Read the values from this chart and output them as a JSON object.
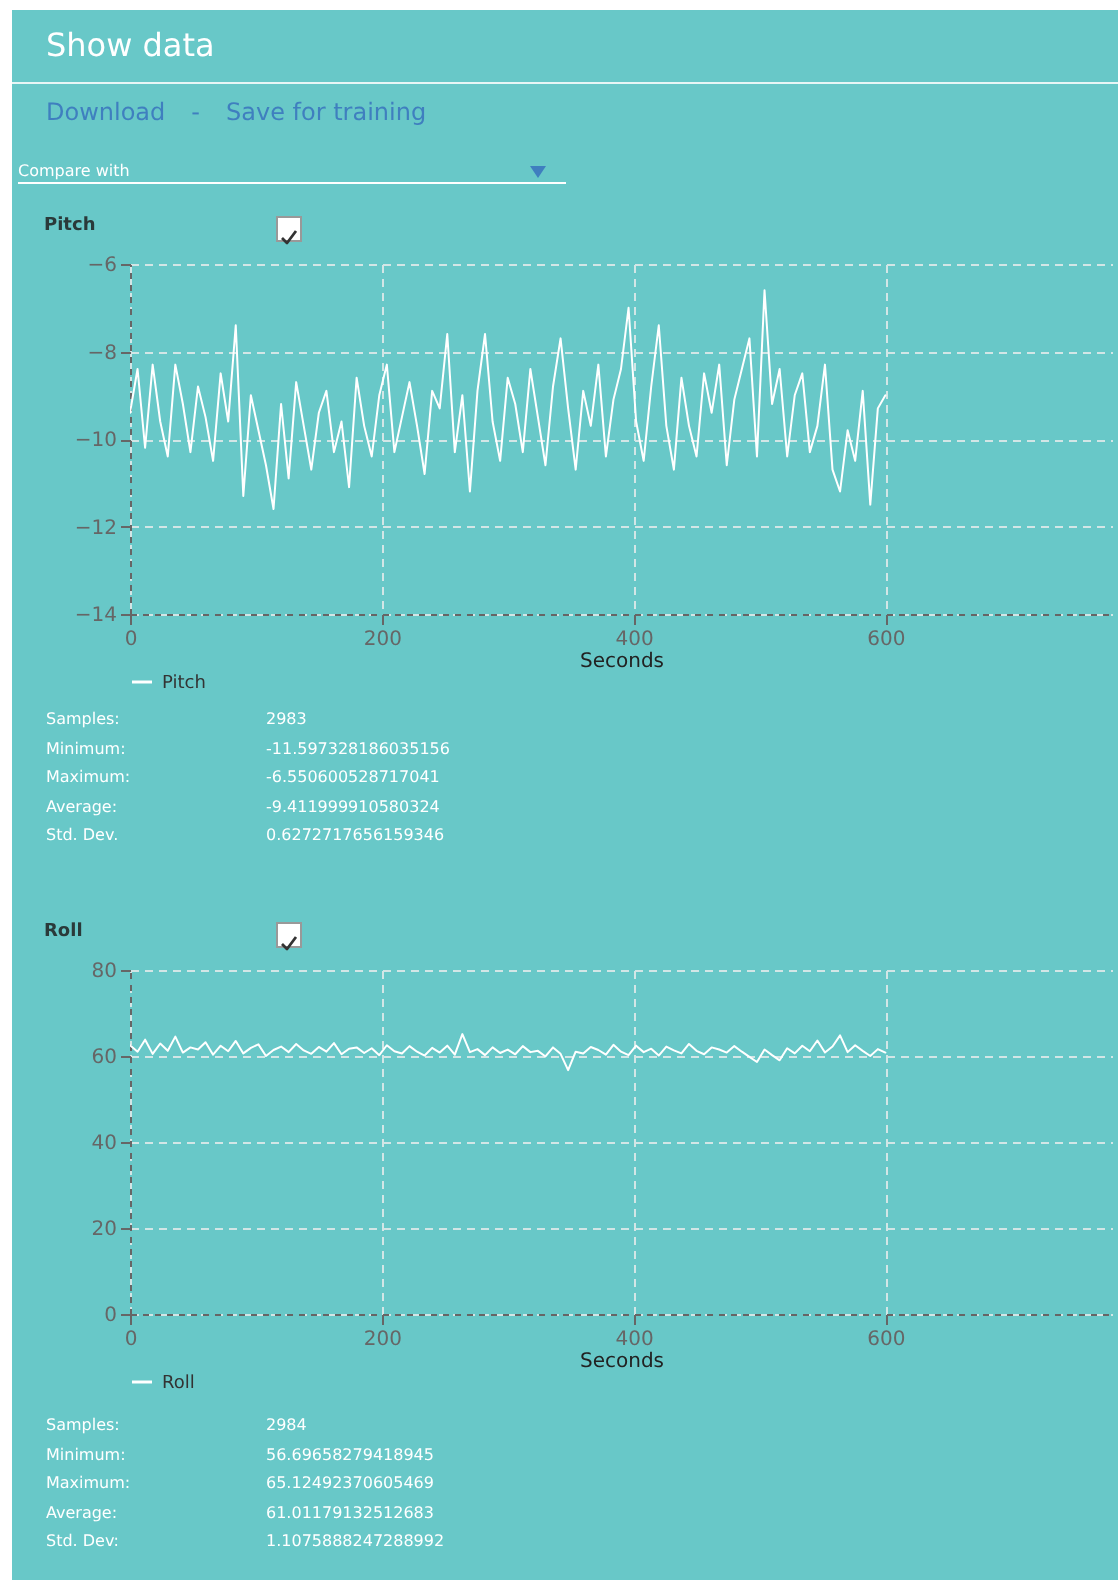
{
  "chart_data": [
    {
      "type": "line",
      "title": "Pitch",
      "xlabel": "Seconds",
      "xlim": [
        0,
        780
      ],
      "xticks": [
        0,
        200,
        400,
        600
      ],
      "ylim": [
        -14,
        -6
      ],
      "yticks": [
        -14,
        -12,
        -10,
        -8,
        -6
      ],
      "grid": true,
      "legend": "bottom",
      "annotations": [
        "Show data",
        "Download",
        "-",
        "Save for training",
        "Compare with",
        "Samples:",
        "2983",
        "Minimum:",
        "-11.597328186035156",
        "Maximum:",
        "-6.550600528717041",
        "Average:",
        "-9.411999910580324",
        "Std. Dev.",
        "0.6272717656159346"
      ],
      "x": [
        0,
        6,
        12,
        18,
        24,
        30,
        36,
        42,
        48,
        54,
        60,
        66,
        72,
        78,
        84,
        90,
        96,
        102,
        108,
        114,
        120,
        126,
        132,
        138,
        144,
        150,
        156,
        162,
        168,
        174,
        180,
        186,
        192,
        198,
        204,
        210,
        216,
        222,
        228,
        234,
        240,
        246,
        252,
        258,
        264,
        270,
        276,
        282,
        288,
        294,
        300,
        306,
        312,
        318,
        324,
        330,
        336,
        342,
        348,
        354,
        360,
        366,
        372,
        378,
        384,
        390,
        396,
        402,
        408,
        414,
        420,
        426,
        432,
        438,
        444,
        450,
        456,
        462,
        468,
        474,
        480,
        486,
        492,
        498,
        504,
        510,
        516,
        522,
        528,
        534,
        540,
        546,
        552,
        558,
        564,
        570,
        576,
        582,
        588,
        594,
        600
      ],
      "series": [
        {
          "name": "Pitch",
          "color": "#ffffff",
          "values": [
            -9.4,
            -8.4,
            -10.2,
            -8.3,
            -9.6,
            -10.4,
            -8.3,
            -9.2,
            -10.3,
            -8.8,
            -9.5,
            -10.5,
            -8.5,
            -9.6,
            -7.4,
            -11.3,
            -9.0,
            -9.8,
            -10.6,
            -11.6,
            -9.2,
            -10.9,
            -8.7,
            -9.7,
            -10.7,
            -9.4,
            -8.9,
            -10.3,
            -9.6,
            -11.1,
            -8.6,
            -9.7,
            -10.4,
            -9.0,
            -8.3,
            -10.3,
            -9.5,
            -8.7,
            -9.7,
            -10.8,
            -8.9,
            -9.3,
            -7.6,
            -10.3,
            -9.0,
            -11.2,
            -8.9,
            -7.6,
            -9.6,
            -10.5,
            -8.6,
            -9.2,
            -10.3,
            -8.4,
            -9.5,
            -10.6,
            -8.8,
            -7.7,
            -9.3,
            -10.7,
            -8.9,
            -9.7,
            -8.3,
            -10.4,
            -9.1,
            -8.4,
            -7.0,
            -9.6,
            -10.5,
            -8.8,
            -7.4,
            -9.7,
            -10.7,
            -8.6,
            -9.7,
            -10.4,
            -8.5,
            -9.4,
            -8.3,
            -10.6,
            -9.1,
            -8.4,
            -7.7,
            -10.4,
            -6.6,
            -9.2,
            -8.4,
            -10.4,
            -9.0,
            -8.5,
            -10.3,
            -9.7,
            -8.3,
            -10.7,
            -11.2,
            -9.8,
            -10.5,
            -8.9,
            -11.5,
            -9.3,
            -9.0
          ]
        }
      ]
    },
    {
      "type": "line",
      "title": "Roll",
      "xlabel": "Seconds",
      "xlim": [
        0,
        780
      ],
      "xticks": [
        0,
        200,
        400,
        600
      ],
      "ylim": [
        0,
        80
      ],
      "yticks": [
        0,
        20,
        40,
        60,
        80
      ],
      "grid": true,
      "legend": "bottom",
      "annotations": [
        "Samples:",
        "2984",
        "Minimum:",
        "56.69658279418945",
        "Maximum:",
        "65.12492370605469",
        "Average:",
        "61.01179132512683",
        "Std. Dev:",
        "1.1075888247288992"
      ],
      "x": [
        0,
        6,
        12,
        18,
        24,
        30,
        36,
        42,
        48,
        54,
        60,
        66,
        72,
        78,
        84,
        90,
        96,
        102,
        108,
        114,
        120,
        126,
        132,
        138,
        144,
        150,
        156,
        162,
        168,
        174,
        180,
        186,
        192,
        198,
        204,
        210,
        216,
        222,
        228,
        234,
        240,
        246,
        252,
        258,
        264,
        270,
        276,
        282,
        288,
        294,
        300,
        306,
        312,
        318,
        324,
        330,
        336,
        342,
        348,
        354,
        360,
        366,
        372,
        378,
        384,
        390,
        396,
        402,
        408,
        414,
        420,
        426,
        432,
        438,
        444,
        450,
        456,
        462,
        468,
        474,
        480,
        486,
        492,
        498,
        504,
        510,
        516,
        522,
        528,
        534,
        540,
        546,
        552,
        558,
        564,
        570,
        576,
        582,
        588,
        594,
        600
      ],
      "series": [
        {
          "name": "Roll",
          "color": "#ffffff",
          "values": [
            62.5,
            61.0,
            63.8,
            60.5,
            62.9,
            61.2,
            64.5,
            60.8,
            62.0,
            61.5,
            63.2,
            60.3,
            62.4,
            61.1,
            63.5,
            60.6,
            61.9,
            62.7,
            60.0,
            61.4,
            62.2,
            60.9,
            62.8,
            61.3,
            60.5,
            62.1,
            61.0,
            63.0,
            60.4,
            61.7,
            62.0,
            60.7,
            61.8,
            60.2,
            62.5,
            61.1,
            60.6,
            62.3,
            61.0,
            60.1,
            61.9,
            60.8,
            62.4,
            60.3,
            65.1,
            60.9,
            61.6,
            60.2,
            62.0,
            60.7,
            61.5,
            60.4,
            62.3,
            60.9,
            61.2,
            59.9,
            62.0,
            60.5,
            56.7,
            61.0,
            60.6,
            62.1,
            61.4,
            60.3,
            62.6,
            61.0,
            60.2,
            62.4,
            60.9,
            61.7,
            60.1,
            62.2,
            61.3,
            60.6,
            62.8,
            61.2,
            60.4,
            62.0,
            61.5,
            60.8,
            62.3,
            61.0,
            59.8,
            58.6,
            61.5,
            60.2,
            59.0,
            61.8,
            60.6,
            62.4,
            61.1,
            63.6,
            60.8,
            62.2,
            64.8,
            60.9,
            62.5,
            61.2,
            60.0,
            61.6,
            60.8
          ]
        }
      ]
    }
  ]
}
